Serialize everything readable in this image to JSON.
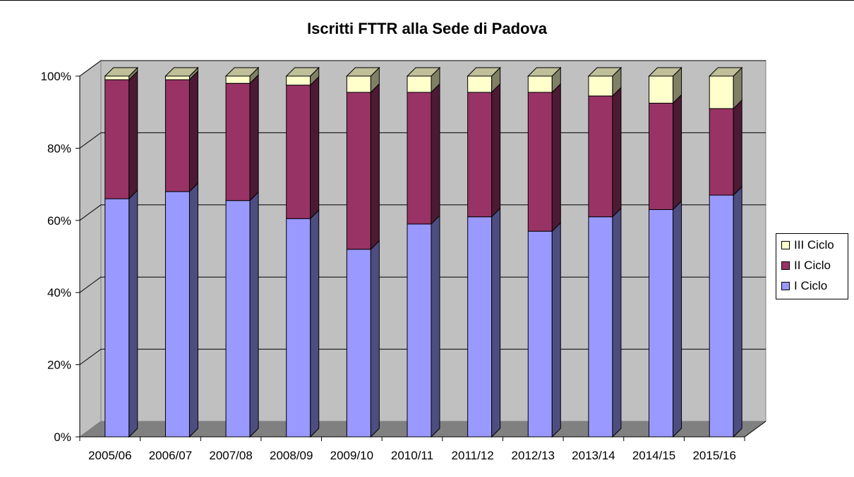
{
  "chart_data": {
    "type": "bar",
    "stacked": "percent",
    "title": "Iscritti FTTR alla Sede di Padova",
    "categories": [
      "2005/06",
      "2006/07",
      "2007/08",
      "2008/09",
      "2009/10",
      "2010/11",
      "2011/12",
      "2012/13",
      "2013/14",
      "2014/15",
      "2015/16"
    ],
    "series": [
      {
        "name": "I Ciclo",
        "color": "#9999ff",
        "values": [
          66,
          68,
          65.5,
          60.5,
          52,
          59,
          61,
          57,
          61,
          63,
          67
        ]
      },
      {
        "name": "II Ciclo",
        "color": "#993366",
        "values": [
          33,
          31,
          32.5,
          37,
          43.5,
          36.5,
          34.5,
          38.5,
          33.5,
          29.5,
          24
        ]
      },
      {
        "name": "III Ciclo",
        "color": "#ffffcc",
        "values": [
          1,
          1,
          2,
          2.5,
          4.5,
          4.5,
          4.5,
          4.5,
          5.5,
          7.5,
          9
        ]
      }
    ],
    "y_ticks": [
      "0%",
      "20%",
      "40%",
      "60%",
      "80%",
      "100%"
    ],
    "ylim": [
      0,
      100
    ],
    "grid": true,
    "legend_position": "right"
  }
}
